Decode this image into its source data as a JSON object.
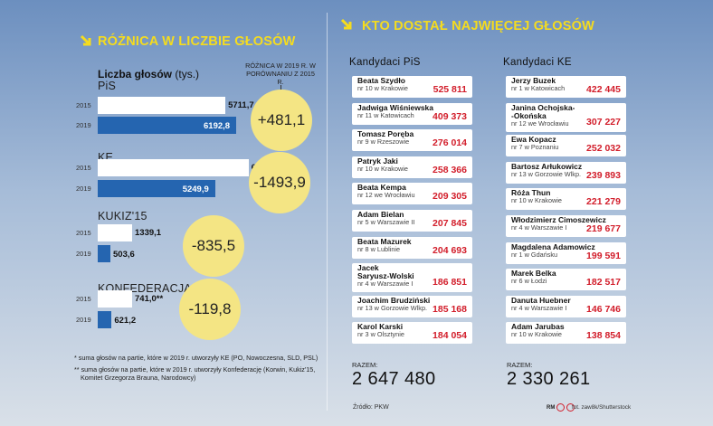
{
  "left": {
    "title": "RÓŻNICA W LICZBIE GŁOSÓW",
    "axis_label": "Liczba głosów",
    "axis_unit": "(tys.)",
    "diff_note": "RÓŻNICA W 2019 R. W PORÓWNANIU Z 2015 R.",
    "footnote1": "* suma głosów na partie, które w 2019 r. utworzyły KE (PO, Nowoczesna, SLD, PSL)",
    "footnote2": "** suma głosów na partie, które w 2019 r. utworzyły Konfederację (Korwin, Kukiz'15,",
    "footnote3": "Komitet Grzegorza Brauna, Narodowcy)"
  },
  "chart_data": {
    "type": "bar",
    "orientation": "horizontal",
    "categories": [
      "PiS",
      "KE",
      "KUKIZ'15",
      "KONFEDERACJA"
    ],
    "series": [
      {
        "name": "2015",
        "values": [
          5711.7,
          6743.8,
          1339.1,
          741.0
        ],
        "labels": [
          "5711,7",
          "6743,8*",
          "1339,1",
          "741,0**"
        ],
        "color": "#ffffff"
      },
      {
        "name": "2019",
        "values": [
          6192.8,
          5249.9,
          503.6,
          621.2
        ],
        "labels": [
          "6192,8",
          "5249,9",
          "503,6",
          "621,2"
        ],
        "color": "#2565b0"
      }
    ],
    "differences": [
      "+481,1",
      "-1493,9",
      "-835,5",
      "-119,8"
    ],
    "unit": "tys."
  },
  "right": {
    "title": "KTO DOSTAŁ NAJWIĘCEJ GŁOSÓW",
    "pis": {
      "header": "Kandydaci PiS",
      "candidates": [
        {
          "name": "Beata Szydło",
          "sub": "nr 10 w Krakowie",
          "votes": "525 811"
        },
        {
          "name": "Jadwiga Wiśniewska",
          "sub": "nr 11 w Katowicach",
          "votes": "409 373"
        },
        {
          "name": "Tomasz Poręba",
          "sub": "nr 9 w Rzeszowie",
          "votes": "276 014"
        },
        {
          "name": "Patryk Jaki",
          "sub": "nr 10 w Krakowie",
          "votes": "258 366"
        },
        {
          "name": "Beata Kempa",
          "sub": "nr 12 we Wrocławiu",
          "votes": "209 305"
        },
        {
          "name": "Adam Bielan",
          "sub": "nr 5 w Warszawie II",
          "votes": "207 845"
        },
        {
          "name": "Beata Mazurek",
          "sub": "nr 8 w Lublinie",
          "votes": "204 693"
        },
        {
          "name": "Jacek Saryusz-Wolski",
          "name2": "Saryusz-Wolski",
          "sub": "nr 4 w Warszawie I",
          "votes": "186 851"
        },
        {
          "name": "Joachim Brudziński",
          "sub": "nr 13 w Gorzowie Wlkp.",
          "votes": "185 168"
        },
        {
          "name": "Karol Karski",
          "sub": "nr 3 w Olsztynie",
          "votes": "184 054"
        }
      ],
      "total_label": "RAZEM:",
      "total": "2 647 480"
    },
    "ke": {
      "header": "Kandydaci KE",
      "candidates": [
        {
          "name": "Jerzy Buzek",
          "sub": "nr 1 w Katowicach",
          "votes": "422 445"
        },
        {
          "name": "Janina Ochojska-",
          "name2": "-Okońska",
          "sub": "nr 12 we Wrocławiu",
          "votes": "307 227"
        },
        {
          "name": "Ewa Kopacz",
          "sub": "nr 7 w Poznaniu",
          "votes": "252 032"
        },
        {
          "name": "Bartosz Arłukowicz",
          "sub": "nr 13 w Gorzowie Wlkp.",
          "votes": "239 893"
        },
        {
          "name": "Róża Thun",
          "sub": "nr 10 w Krakowie",
          "votes": "221 279"
        },
        {
          "name": "Włodzimierz Cimoszewicz",
          "sub": "nr 4 w Warszawie I",
          "votes": "219 677"
        },
        {
          "name": "Magdalena Adamowicz",
          "sub": "nr 1 w Gdańsku",
          "votes": "199 591"
        },
        {
          "name": "Marek Belka",
          "sub": "nr 6 w Łodzi",
          "votes": "182 517"
        },
        {
          "name": "Danuta Huebner",
          "sub": "nr 4 w Warszawie I",
          "votes": "146 746"
        },
        {
          "name": "Adam Jarubas",
          "sub": "nr 10 w Krakowie",
          "votes": "138 854"
        }
      ],
      "total_label": "RAZEM:",
      "total": "2 330 261"
    },
    "source": "Źródło: PKW",
    "credit": "fot. zaw8k/Shutterstock",
    "logo_text": "RM"
  },
  "colors": {
    "accent_yellow": "#f5dc1e",
    "bar_2019": "#2565b0",
    "bar_2015": "#ffffff",
    "circle": "#f4e584",
    "votes_red": "#d21d2a"
  }
}
